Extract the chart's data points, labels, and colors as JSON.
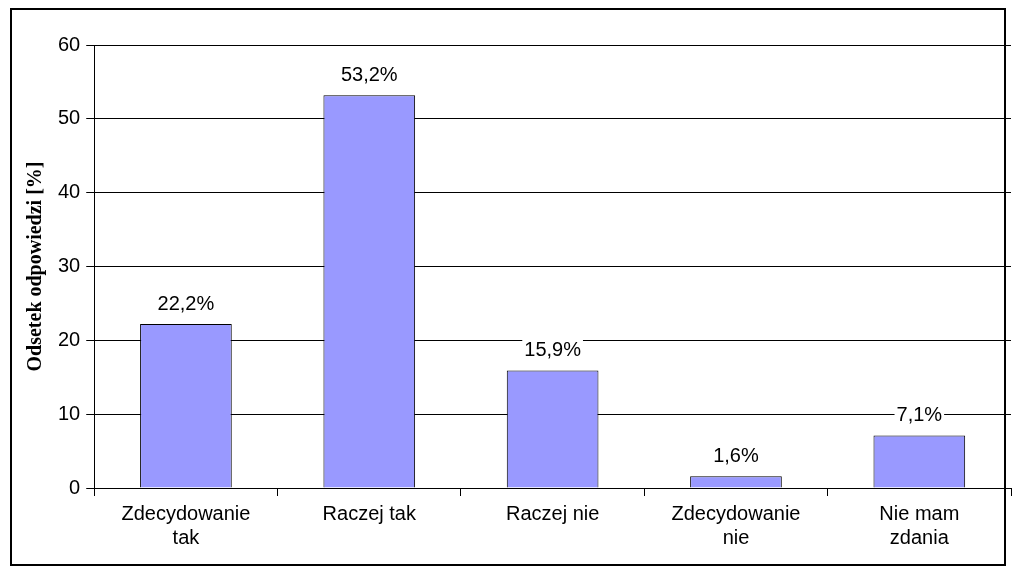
{
  "chart_data": {
    "type": "bar",
    "ylabel": "Odsetek odpowiedzi [%]",
    "categories": [
      "Zdecydowanie tak",
      "Raczej tak",
      "Raczej nie",
      "Zdecydowanie nie",
      "Nie mam zdania"
    ],
    "values": [
      22.2,
      53.2,
      15.9,
      1.6,
      7.1
    ],
    "value_labels": [
      "22,2%",
      "53,2%",
      "15,9%",
      "1,6%",
      "7,1%"
    ],
    "color": "#9999ff",
    "ylim": [
      0,
      60
    ],
    "yticks": [
      0,
      10,
      20,
      30,
      40,
      50,
      60
    ],
    "grid": "y",
    "legend": false
  }
}
